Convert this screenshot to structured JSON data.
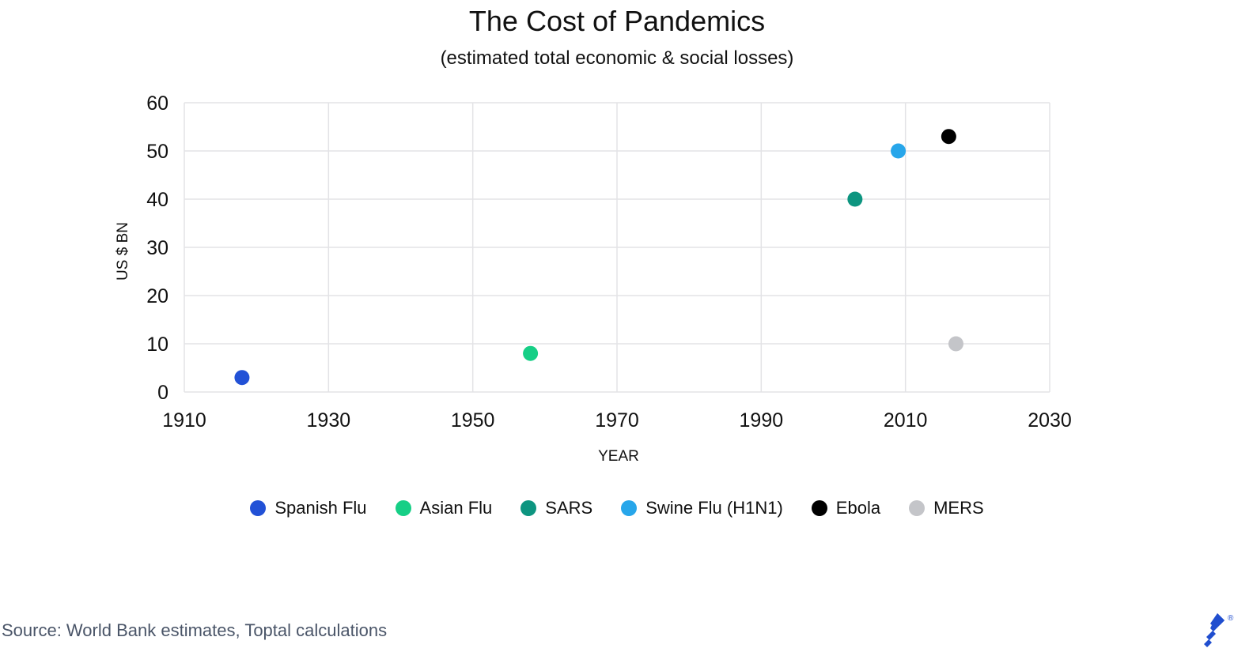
{
  "chart_data": {
    "type": "scatter",
    "title": "The Cost of Pandemics",
    "subtitle": "(estimated total economic & social losses)",
    "xlabel": "YEAR",
    "ylabel": "US $ BN",
    "xlim": [
      1910,
      2030
    ],
    "ylim": [
      0,
      60
    ],
    "xticks": [
      "1910",
      "1930",
      "1950",
      "1970",
      "1990",
      "2010",
      "2030"
    ],
    "yticks": [
      "0",
      "10",
      "20",
      "30",
      "40",
      "50",
      "60"
    ],
    "grid": true,
    "legend_position": "bottom",
    "series": [
      {
        "name": "Spanish Flu",
        "color": "#2251d6",
        "x": [
          1918
        ],
        "y": [
          3
        ]
      },
      {
        "name": "Asian Flu",
        "color": "#16cf86",
        "x": [
          1958
        ],
        "y": [
          8
        ]
      },
      {
        "name": "SARS",
        "color": "#0d9580",
        "x": [
          2003
        ],
        "y": [
          40
        ]
      },
      {
        "name": "Swine Flu (H1N1)",
        "color": "#27a6ea",
        "x": [
          2009
        ],
        "y": [
          50
        ]
      },
      {
        "name": "Ebola",
        "color": "#000000",
        "x": [
          2016
        ],
        "y": [
          53
        ]
      },
      {
        "name": "MERS",
        "color": "#c4c5c9",
        "x": [
          2017
        ],
        "y": [
          10
        ]
      }
    ]
  },
  "source_text": "Source: World Bank estimates, Toptal calculations",
  "logo": {
    "icon": "toptal-logo-icon",
    "color": "#204ecf",
    "mark": "®"
  }
}
